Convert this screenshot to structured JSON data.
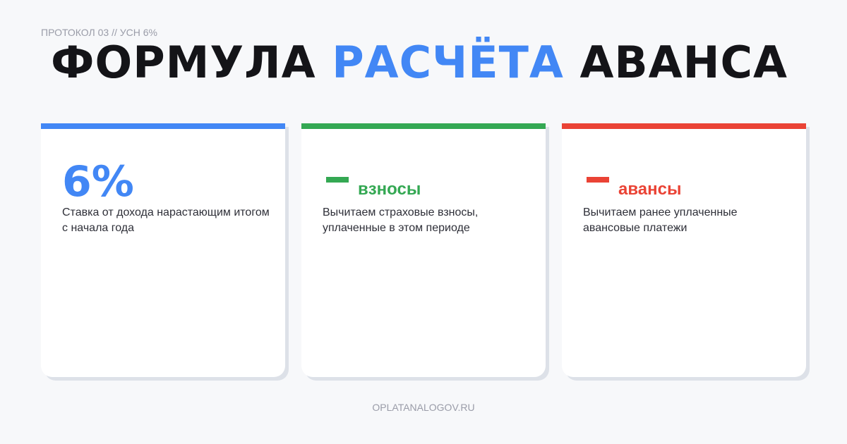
{
  "kicker": "ПРОТОКОЛ 03 // УСН 6%",
  "title": {
    "part1": "ФОРМУЛА ",
    "accent": "РАСЧЁТА",
    "part2": " АВАНСА"
  },
  "colors": {
    "blue": "#4287f5",
    "green": "#34a853",
    "red": "#ea4335",
    "text": "#141418"
  },
  "cards": [
    {
      "big": "6%",
      "desc": "Ставка от дохода нарастающим итогом с начала года"
    },
    {
      "icon": "minus-icon",
      "head": "взносы",
      "desc": "Вычитаем страховые взносы, уплаченные в этом периоде"
    },
    {
      "icon": "minus-icon",
      "head": "авансы",
      "desc": "Вычитаем ранее уплаченные авансовые платежи"
    }
  ],
  "footer": "OPLATANALOGOV.RU"
}
